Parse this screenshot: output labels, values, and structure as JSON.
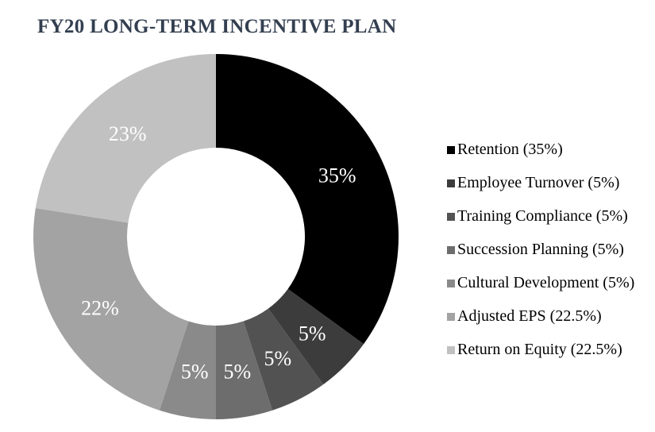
{
  "chart_data": {
    "type": "donut",
    "title": "FY20 LONG-TERM INCENTIVE PLAN",
    "title_color": "#333F50",
    "background_color": "#FFFFFF",
    "value_label_color": "#FFFFFF",
    "legend_text_color": "#000000",
    "legend_position": "right",
    "direction": "clockwise",
    "start_angle_deg": 0,
    "hole_ratio": 0.487,
    "label_radius_ratio": 0.745,
    "total": 100,
    "segments": [
      {
        "label": "Retention",
        "value": 35,
        "display": "35%",
        "legend": "Retention (35%)",
        "color": "#000000"
      },
      {
        "label": "Employee Turnover",
        "value": 5,
        "display": "5%",
        "legend": "Employee Turnover (5%)",
        "color": "#3C3C3C"
      },
      {
        "label": "Training Compliance",
        "value": 5,
        "display": "5%",
        "legend": "Training Compliance (5%)",
        "color": "#525252"
      },
      {
        "label": "Succession Planning",
        "value": 5,
        "display": "5%",
        "legend": "Succession Planning (5%)",
        "color": "#6D6D6D"
      },
      {
        "label": "Cultural Development",
        "value": 5,
        "display": "5%",
        "legend": "Cultural Development (5%)",
        "color": "#8A8A8A"
      },
      {
        "label": "Adjusted EPS",
        "value": 22.5,
        "display": "22%",
        "legend": "Adjusted EPS (22.5%)",
        "color": "#A3A3A3"
      },
      {
        "label": "Return on Equity",
        "value": 22.5,
        "display": "23%",
        "legend": "Return on Equity (22.5%)",
        "color": "#C1C1C1"
      }
    ]
  }
}
